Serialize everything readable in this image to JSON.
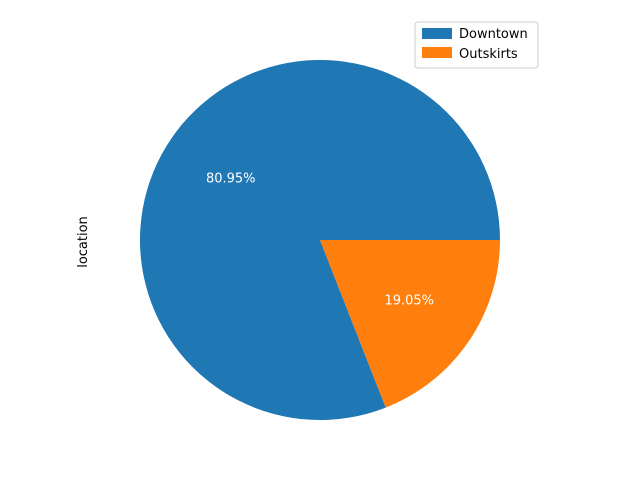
{
  "chart_data": {
    "type": "pie",
    "title": "",
    "ylabel": "location",
    "categories": [
      "Downtown",
      "Outskirts"
    ],
    "values": [
      80.95,
      19.05
    ],
    "labels": [
      "80.95%",
      "19.05%"
    ],
    "colors": [
      "#1f77b4",
      "#ff7f0e"
    ],
    "legend": {
      "placement": "top-right",
      "entries": [
        "Downtown",
        "Outskirts"
      ]
    }
  }
}
